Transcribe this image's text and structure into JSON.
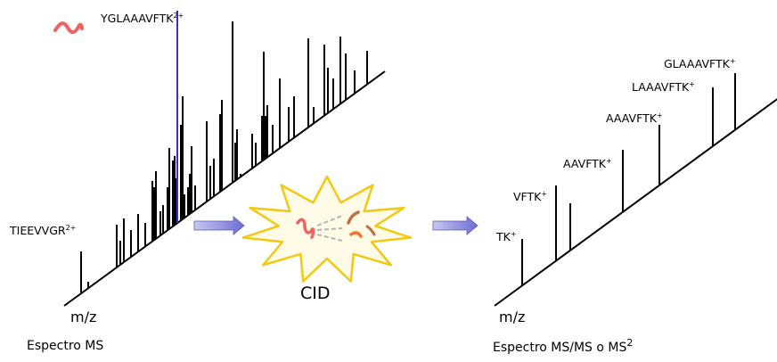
{
  "ms1": {
    "axis_label": "m/z",
    "caption": "Espectro MS",
    "precursor": {
      "name": "YGLAAAVFTK",
      "charge": "2+",
      "highlight_color": "#3333cc"
    },
    "other_peptide": {
      "name": "TIEEVVGR",
      "charge": "2+"
    }
  },
  "cid": {
    "label": "CID"
  },
  "ms2": {
    "axis_label": "m/z",
    "caption_text": "Espectro MS/MS o MS",
    "caption_sup": "2",
    "fragments": [
      {
        "name": "TK",
        "charge": "+"
      },
      {
        "name": "VFTK",
        "charge": "+"
      },
      {
        "name": "AAVFTK",
        "charge": "+"
      },
      {
        "name": "AAAVFTK",
        "charge": "+"
      },
      {
        "name": "LAAAVFTK",
        "charge": "+"
      },
      {
        "name": "GLAAAVFTK",
        "charge": "+"
      }
    ]
  },
  "colors": {
    "peptide_red": "#f06262",
    "fragment_orange": "#e07830",
    "starburst_fill": "#fffbe6",
    "starburst_stroke": "#f2c811",
    "arrow_fill": "#8080d8"
  }
}
